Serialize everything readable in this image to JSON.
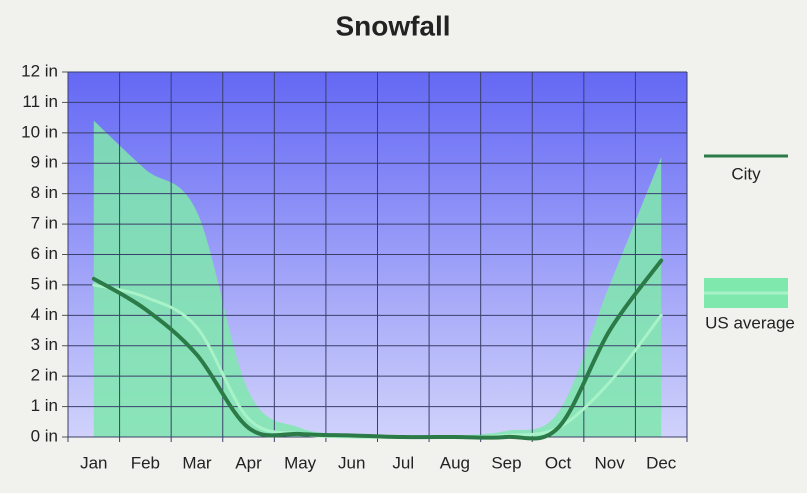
{
  "chart_data": {
    "type": "line",
    "title": "Snowfall",
    "categories": [
      "Jan",
      "Feb",
      "Mar",
      "Apr",
      "May",
      "Jun",
      "Jul",
      "Aug",
      "Sep",
      "Oct",
      "Nov",
      "Dec"
    ],
    "series": [
      {
        "name": "City",
        "color": "#2c7a47",
        "values": [
          5.2,
          4.2,
          2.7,
          0.3,
          0.1,
          0.05,
          0,
          0,
          0,
          0.3,
          3.5,
          5.8
        ]
      },
      {
        "name": "US average",
        "color": "#a8f2c8",
        "band_color": "#7fe8ad",
        "values": [
          5.0,
          4.6,
          3.6,
          0.6,
          0.1,
          0,
          0,
          0,
          0.05,
          0.3,
          1.8,
          4.0
        ],
        "range_high": [
          10.4,
          8.8,
          7.4,
          1.5,
          0.3,
          0.1,
          0.05,
          0.05,
          0.2,
          0.8,
          5.0,
          9.2
        ]
      }
    ],
    "ylim": [
      0,
      12
    ],
    "yticks": [
      {
        "value": 0,
        "label": "0 in"
      },
      {
        "value": 1,
        "label": "1 in"
      },
      {
        "value": 2,
        "label": "2 in"
      },
      {
        "value": 3,
        "label": "3 in"
      },
      {
        "value": 4,
        "label": "4 in"
      },
      {
        "value": 5,
        "label": "5 in"
      },
      {
        "value": 6,
        "label": "6 in"
      },
      {
        "value": 7,
        "label": "7 in"
      },
      {
        "value": 8,
        "label": "8 in"
      },
      {
        "value": 9,
        "label": "9 in"
      },
      {
        "value": 10,
        "label": "10 in"
      },
      {
        "value": 11,
        "label": "11 in"
      },
      {
        "value": 12,
        "label": "12 in"
      }
    ],
    "grid": true,
    "legend": "right"
  }
}
